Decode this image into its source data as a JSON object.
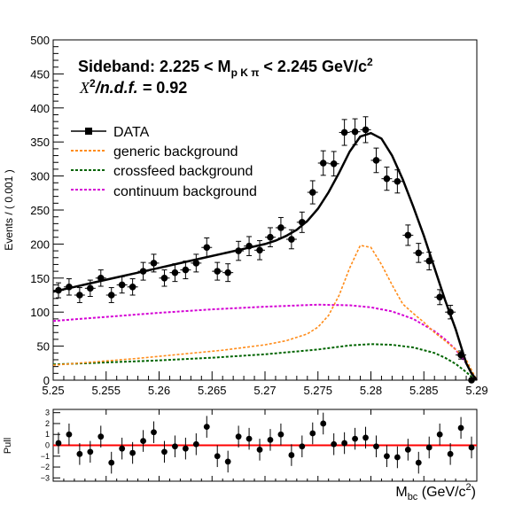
{
  "chart_data": [
    {
      "type": "scatter",
      "panel": "main",
      "title_line1": "Sideband: 2.225 < M",
      "title_sub": "p K π",
      "title_line1_end": " < 2.245 GeV/c",
      "title_sup": "2",
      "chi2_label_pre": "X",
      "chi2_sup": "2",
      "chi2_label_post": "/n.d.f. =",
      "chi2_value": "0.92",
      "ylabel": "Events / ( 0.001 )",
      "xlim": [
        5.25,
        5.29
      ],
      "ylim": [
        0,
        500
      ],
      "x_ticks": [
        "5.25",
        "5.255",
        "5.26",
        "5.265",
        "5.27",
        "5.275",
        "5.28",
        "5.285",
        "5.29"
      ],
      "x_tick_values": [
        5.25,
        5.255,
        5.26,
        5.265,
        5.27,
        5.275,
        5.28,
        5.285,
        5.29
      ],
      "y_ticks": [
        "0",
        "50",
        "100",
        "150",
        "200",
        "250",
        "300",
        "350",
        "400",
        "450",
        "500"
      ],
      "y_tick_values": [
        0,
        50,
        100,
        150,
        200,
        250,
        300,
        350,
        400,
        450,
        500
      ],
      "legend": [
        {
          "label": "DATA",
          "color": "#000000",
          "style": "solid-marker"
        },
        {
          "label": "generic background",
          "color": "#ff8c1a",
          "style": "dashed"
        },
        {
          "label": "crossfeed background",
          "color": "#006400",
          "style": "dashed"
        },
        {
          "label": "continuum background",
          "color": "#d400d4",
          "style": "dashed"
        }
      ],
      "data_points": {
        "x": [
          5.2505,
          5.2515,
          5.2525,
          5.2535,
          5.2545,
          5.2555,
          5.2565,
          5.2575,
          5.2585,
          5.2595,
          5.2605,
          5.2615,
          5.2625,
          5.2635,
          5.2645,
          5.2655,
          5.2665,
          5.2675,
          5.2685,
          5.2695,
          5.2705,
          5.2715,
          5.2725,
          5.2735,
          5.2745,
          5.2755,
          5.2765,
          5.2775,
          5.2785,
          5.2795,
          5.2805,
          5.2815,
          5.2825,
          5.2835,
          5.2845,
          5.2855,
          5.2865,
          5.2875,
          5.2885,
          5.2895
        ],
        "y": [
          132,
          137,
          125,
          135,
          150,
          125,
          140,
          137,
          160,
          172,
          150,
          158,
          162,
          172,
          195,
          160,
          158,
          190,
          197,
          191,
          210,
          224,
          207,
          232,
          276,
          319,
          318,
          364,
          365,
          368,
          323,
          296,
          292,
          213,
          187,
          175,
          122,
          100,
          37,
          0
        ],
        "yerr": [
          11,
          12,
          11,
          12,
          12,
          11,
          12,
          12,
          13,
          13,
          12,
          13,
          13,
          13,
          14,
          13,
          13,
          14,
          14,
          14,
          14,
          15,
          14,
          15,
          17,
          18,
          18,
          19,
          19,
          19,
          18,
          17,
          17,
          15,
          14,
          13,
          11,
          10,
          6,
          0
        ]
      },
      "total_fit": {
        "x": [
          5.25,
          5.252,
          5.254,
          5.256,
          5.258,
          5.26,
          5.262,
          5.264,
          5.266,
          5.268,
          5.27,
          5.271,
          5.272,
          5.273,
          5.274,
          5.275,
          5.276,
          5.277,
          5.278,
          5.279,
          5.28,
          5.281,
          5.282,
          5.283,
          5.284,
          5.285,
          5.286,
          5.287,
          5.288,
          5.289,
          5.2895,
          5.29
        ],
        "y": [
          130,
          137,
          144,
          151,
          158,
          165,
          172,
          179,
          186,
          193,
          200,
          205,
          212,
          221,
          234,
          252,
          276,
          305,
          336,
          358,
          363,
          355,
          330,
          295,
          255,
          212,
          165,
          118,
          75,
          25,
          10,
          0
        ]
      },
      "generic_background": {
        "x": [
          5.25,
          5.254,
          5.258,
          5.262,
          5.266,
          5.27,
          5.272,
          5.274,
          5.275,
          5.276,
          5.277,
          5.278,
          5.279,
          5.28,
          5.281,
          5.282,
          5.283,
          5.284,
          5.285,
          5.286,
          5.287,
          5.288,
          5.289,
          5.2895,
          5.29
        ],
        "y": [
          22,
          27,
          32,
          38,
          44,
          52,
          58,
          68,
          78,
          95,
          125,
          165,
          198,
          195,
          170,
          140,
          112,
          98,
          85,
          70,
          58,
          45,
          30,
          15,
          0
        ]
      },
      "crossfeed_background": {
        "x": [
          5.25,
          5.255,
          5.26,
          5.265,
          5.27,
          5.275,
          5.278,
          5.28,
          5.282,
          5.284,
          5.286,
          5.287,
          5.288,
          5.289,
          5.2895,
          5.29
        ],
        "y": [
          23,
          26,
          29,
          33,
          38,
          45,
          51,
          53,
          52,
          48,
          40,
          33,
          24,
          12,
          5,
          0
        ]
      },
      "continuum_background": {
        "x": [
          5.25,
          5.255,
          5.26,
          5.265,
          5.27,
          5.275,
          5.278,
          5.28,
          5.282,
          5.284,
          5.286,
          5.287,
          5.288,
          5.289,
          5.2895,
          5.29
        ],
        "y": [
          87,
          93,
          99,
          104,
          108,
          111,
          110,
          107,
          101,
          90,
          72,
          60,
          45,
          25,
          10,
          0
        ]
      }
    },
    {
      "type": "scatter",
      "panel": "pull",
      "ylabel": "Pull",
      "xlabel_main": "M",
      "xlabel_sub": "bc",
      "xlabel_end": " (GeV/c",
      "xlabel_sup": "2",
      "xlabel_close": ")",
      "ylim": [
        -3.3,
        3.3
      ],
      "y_ticks": [
        "3",
        "2",
        "1",
        "0",
        "−1",
        "−2",
        "−3"
      ],
      "y_tick_values": [
        3,
        2,
        1,
        0,
        -1,
        -2,
        -3
      ],
      "reference_line": {
        "y": 0,
        "color": "#ff0000"
      },
      "points": {
        "x": [
          5.2505,
          5.2515,
          5.2525,
          5.2535,
          5.2545,
          5.2555,
          5.2565,
          5.2575,
          5.2585,
          5.2595,
          5.2605,
          5.2615,
          5.2625,
          5.2635,
          5.2645,
          5.2655,
          5.2665,
          5.2675,
          5.2685,
          5.2695,
          5.2705,
          5.2715,
          5.2725,
          5.2735,
          5.2745,
          5.2755,
          5.2765,
          5.2775,
          5.2785,
          5.2795,
          5.2805,
          5.2815,
          5.2825,
          5.2835,
          5.2845,
          5.2855,
          5.2865,
          5.2875,
          5.2885,
          5.2895
        ],
        "y": [
          0.2,
          1.0,
          -0.8,
          -0.6,
          0.8,
          -1.6,
          -0.3,
          -0.7,
          0.4,
          1.2,
          -0.6,
          -0.1,
          -0.3,
          0.1,
          1.7,
          -1.0,
          -1.5,
          0.8,
          0.6,
          -0.4,
          0.5,
          1.0,
          -0.9,
          -0.1,
          1.1,
          2.0,
          0.1,
          0.2,
          0.6,
          0.7,
          -0.1,
          -1.0,
          -1.1,
          -0.4,
          -1.6,
          -0.2,
          1.0,
          -0.8,
          1.6,
          -0.2
        ]
      }
    }
  ]
}
